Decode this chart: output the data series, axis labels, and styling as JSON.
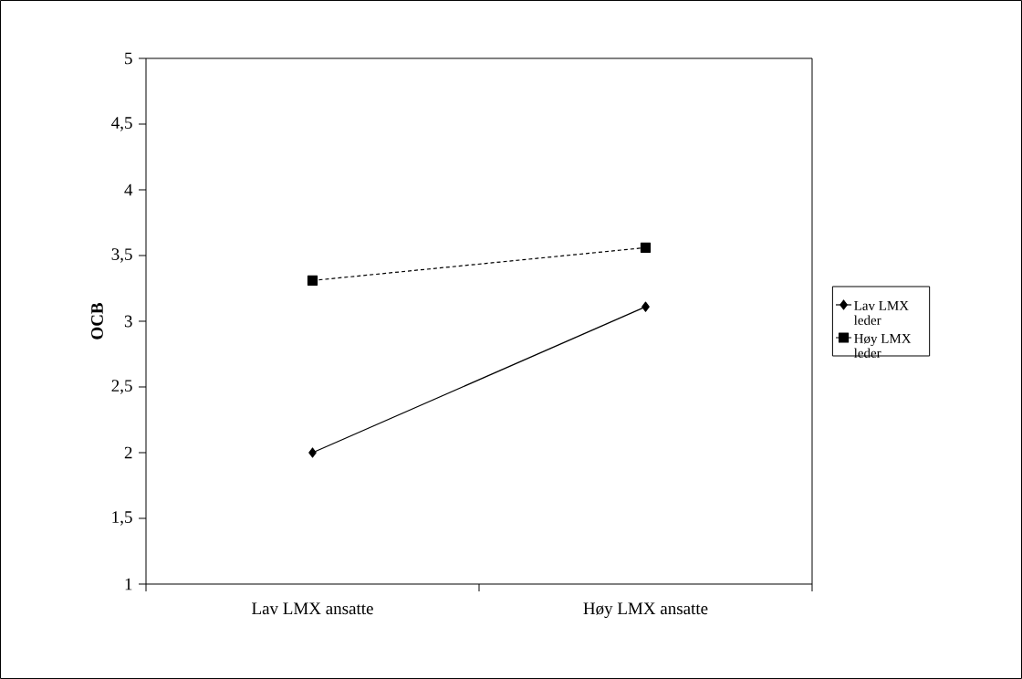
{
  "chart_data": {
    "type": "line",
    "ylabel": "OCB",
    "categories": [
      "Lav LMX ansatte",
      "Høy LMX ansatte"
    ],
    "series": [
      {
        "name": "Lav LMX leder",
        "color": "#000000",
        "values": [
          2.0,
          3.11
        ],
        "marker": "diamond",
        "line_style": "solid"
      },
      {
        "name": "Høy LMX leder",
        "color": "#000000",
        "values": [
          3.31,
          3.56
        ],
        "marker": "square",
        "line_style": "dashed"
      }
    ],
    "ylim": [
      1,
      5
    ],
    "yticks": [
      1,
      {
        "value": 1.5,
        "label": "1,5"
      },
      2,
      {
        "value": 2.5,
        "label": "2,5"
      },
      3,
      {
        "value": 3.5,
        "label": "3,5"
      },
      4,
      {
        "value": 4.5,
        "label": "4,5"
      },
      5
    ],
    "legend": "right",
    "grid": false
  }
}
